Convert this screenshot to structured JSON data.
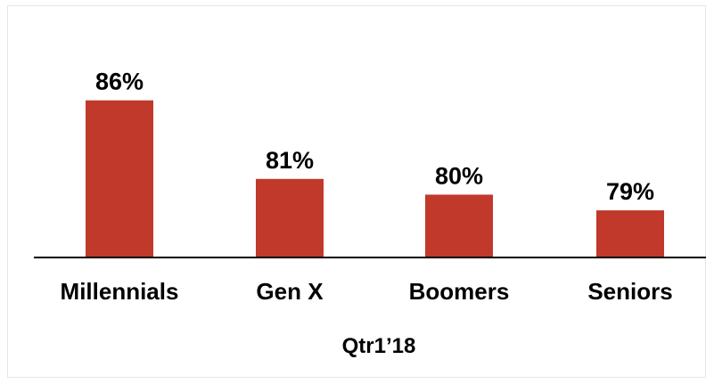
{
  "chart_data": {
    "type": "bar",
    "categories": [
      "Millennials",
      "Gen X",
      "Boomers",
      "Seniors"
    ],
    "values": [
      86,
      81,
      80,
      79
    ],
    "data_labels": [
      "86%",
      "81%",
      "80%",
      "79%"
    ],
    "title": "",
    "xlabel": "Qtr1’18",
    "ylabel": "",
    "ylim": [
      76,
      87
    ],
    "grid": false,
    "legend": "none",
    "bar_color": "#c0392b",
    "axis_color": "#000000"
  }
}
